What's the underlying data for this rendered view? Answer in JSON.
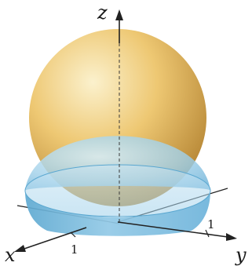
{
  "axes": {
    "x_label": "x",
    "y_label": "y",
    "z_label": "z",
    "x_tick": "1",
    "y_tick": "1"
  },
  "colors": {
    "sphere_light": "#fbf1cd",
    "sphere_mid": "#eec873",
    "sphere_dark": "#b07f2e",
    "hemisphere_light": "#cfe6f3",
    "hemisphere_mid": "#9ccde6",
    "hemisphere_dark": "#5ea9d1",
    "axis": "#222222"
  },
  "shapes": {
    "upper": "sphere",
    "lower": "hemisphere"
  }
}
